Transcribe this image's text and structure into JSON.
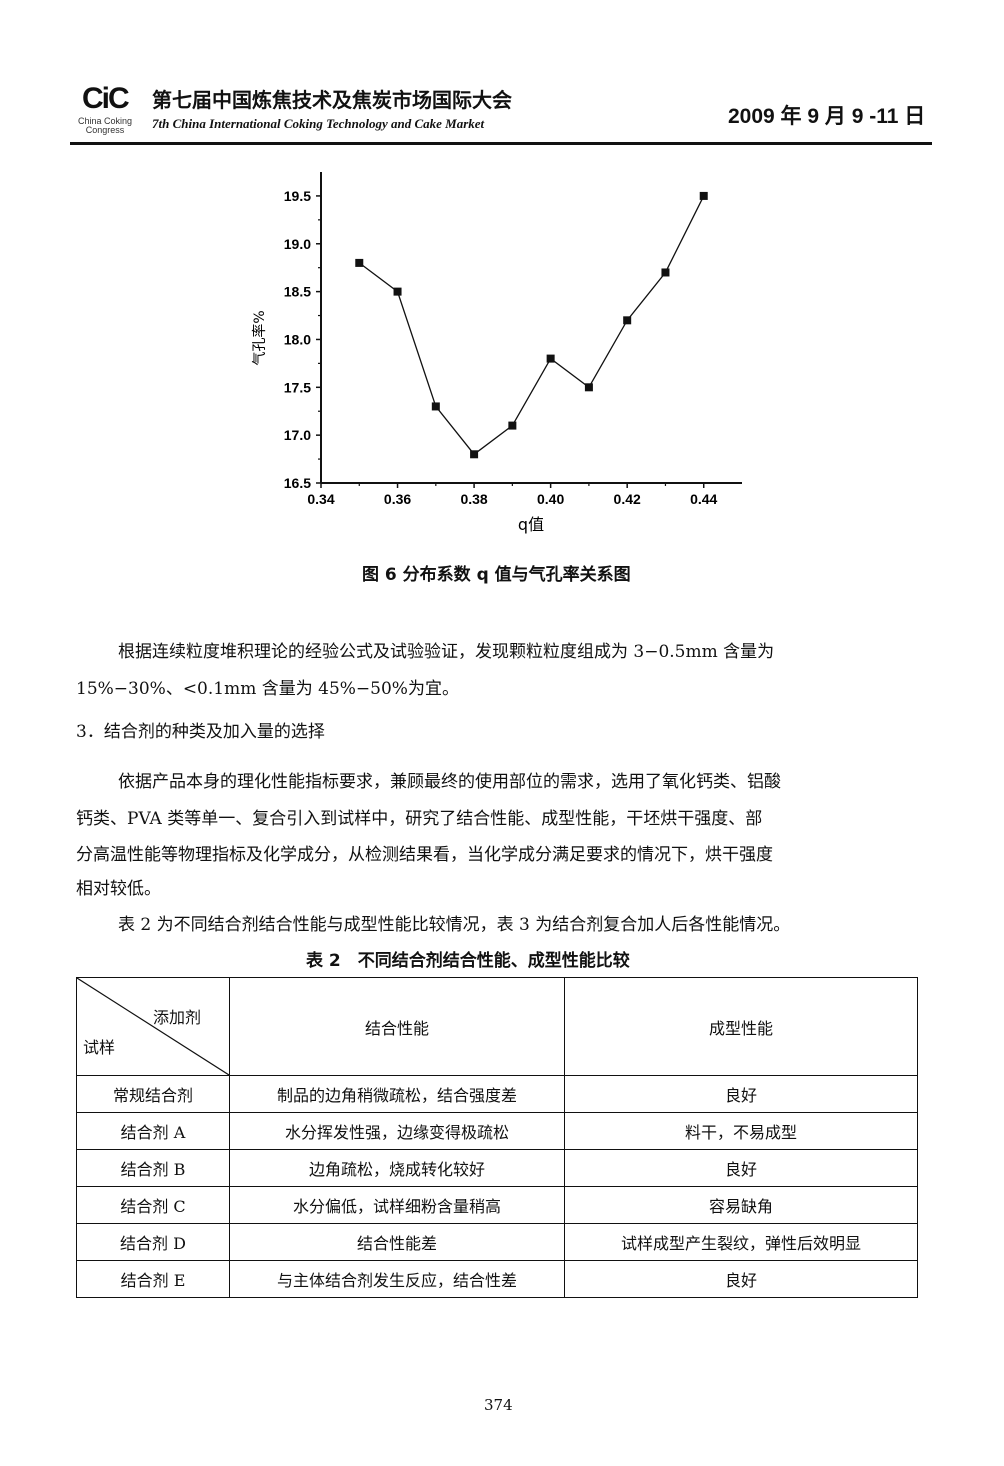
{
  "header": {
    "logo": "CiC",
    "logo_sub": "China Coking Congress",
    "conference_cn": "第七届中国炼焦技术及焦炭市场国际大会",
    "conference_en": "7th China International Coking Technology and Cake Market",
    "date": "2009 年 9 月 9 -11 日"
  },
  "chart_data": {
    "type": "line",
    "title": "",
    "xlabel": "q值",
    "ylabel": "气孔率%",
    "x": [
      0.35,
      0.36,
      0.37,
      0.38,
      0.39,
      0.4,
      0.41,
      0.42,
      0.43,
      0.44
    ],
    "series": [
      {
        "values": [
          18.8,
          18.5,
          17.3,
          16.8,
          17.1,
          17.8,
          17.5,
          18.2,
          18.7,
          19.5
        ],
        "marker": "square"
      }
    ],
    "xlim": [
      0.34,
      0.45
    ],
    "ylim": [
      16.5,
      19.75
    ],
    "xticks": [
      "0.34",
      "0.36",
      "0.38",
      "0.40",
      "0.42",
      "0.44"
    ],
    "yticks": [
      "16.5",
      "17.0",
      "17.5",
      "18.0",
      "18.5",
      "19.0",
      "19.5"
    ],
    "grid": false,
    "color": "#111111"
  },
  "figure_caption": "图 6 分布系数 q 值与气孔率关系图",
  "body": {
    "para1_line1": "根据连续粒度堆积理论的经验公式及试验验证，发现颗粒粒度组成为 3−0.5mm 含量为",
    "para1_line2": "15%−30%、<0.1mm 含量为 45%−50%为宜。",
    "heading": "3．结合剂的种类及加入量的选择",
    "para2_line1": "依据产品本身的理化性能指标要求，兼顾最终的使用部位的需求，选用了氧化钙类、铝酸",
    "para2_line2": "钙类、PVA 类等单一、复合引入到试样中，研究了结合性能、成型性能，干坯烘干强度、部",
    "para2_line3": "分高温性能等物理指标及化学成分，从检测结果看，当化学成分满足要求的情况下，烘干强度",
    "para2_line4": "相对较低。",
    "para3": "表 2 为不同结合剂结合性能与成型性能比较情况，表 3 为结合剂复合加人后各性能情况。"
  },
  "table": {
    "caption": "表 2　不同结合剂结合性能、成型性能比较",
    "corner_top": "添加剂",
    "corner_bottom": "试样",
    "col1": "结合性能",
    "col2": "成型性能",
    "rows": [
      {
        "sample": "常规结合剂",
        "binding": "制品的边角稍微疏松，结合强度差",
        "forming": "良好"
      },
      {
        "sample": "结合剂 A",
        "binding": "水分挥发性强，边缘变得极疏松",
        "forming": "料干，不易成型"
      },
      {
        "sample": "结合剂 B",
        "binding": "边角疏松，烧成转化较好",
        "forming": "良好"
      },
      {
        "sample": "结合剂 C",
        "binding": "水分偏低，试样细粉含量稍高",
        "forming": "容易缺角"
      },
      {
        "sample": "结合剂 D",
        "binding": "结合性能差",
        "forming": "试样成型产生裂纹，弹性后效明显"
      },
      {
        "sample": "结合剂 E",
        "binding": "与主体结合剂发生反应，结合性差",
        "forming": "良好"
      }
    ]
  },
  "page_number": "374"
}
